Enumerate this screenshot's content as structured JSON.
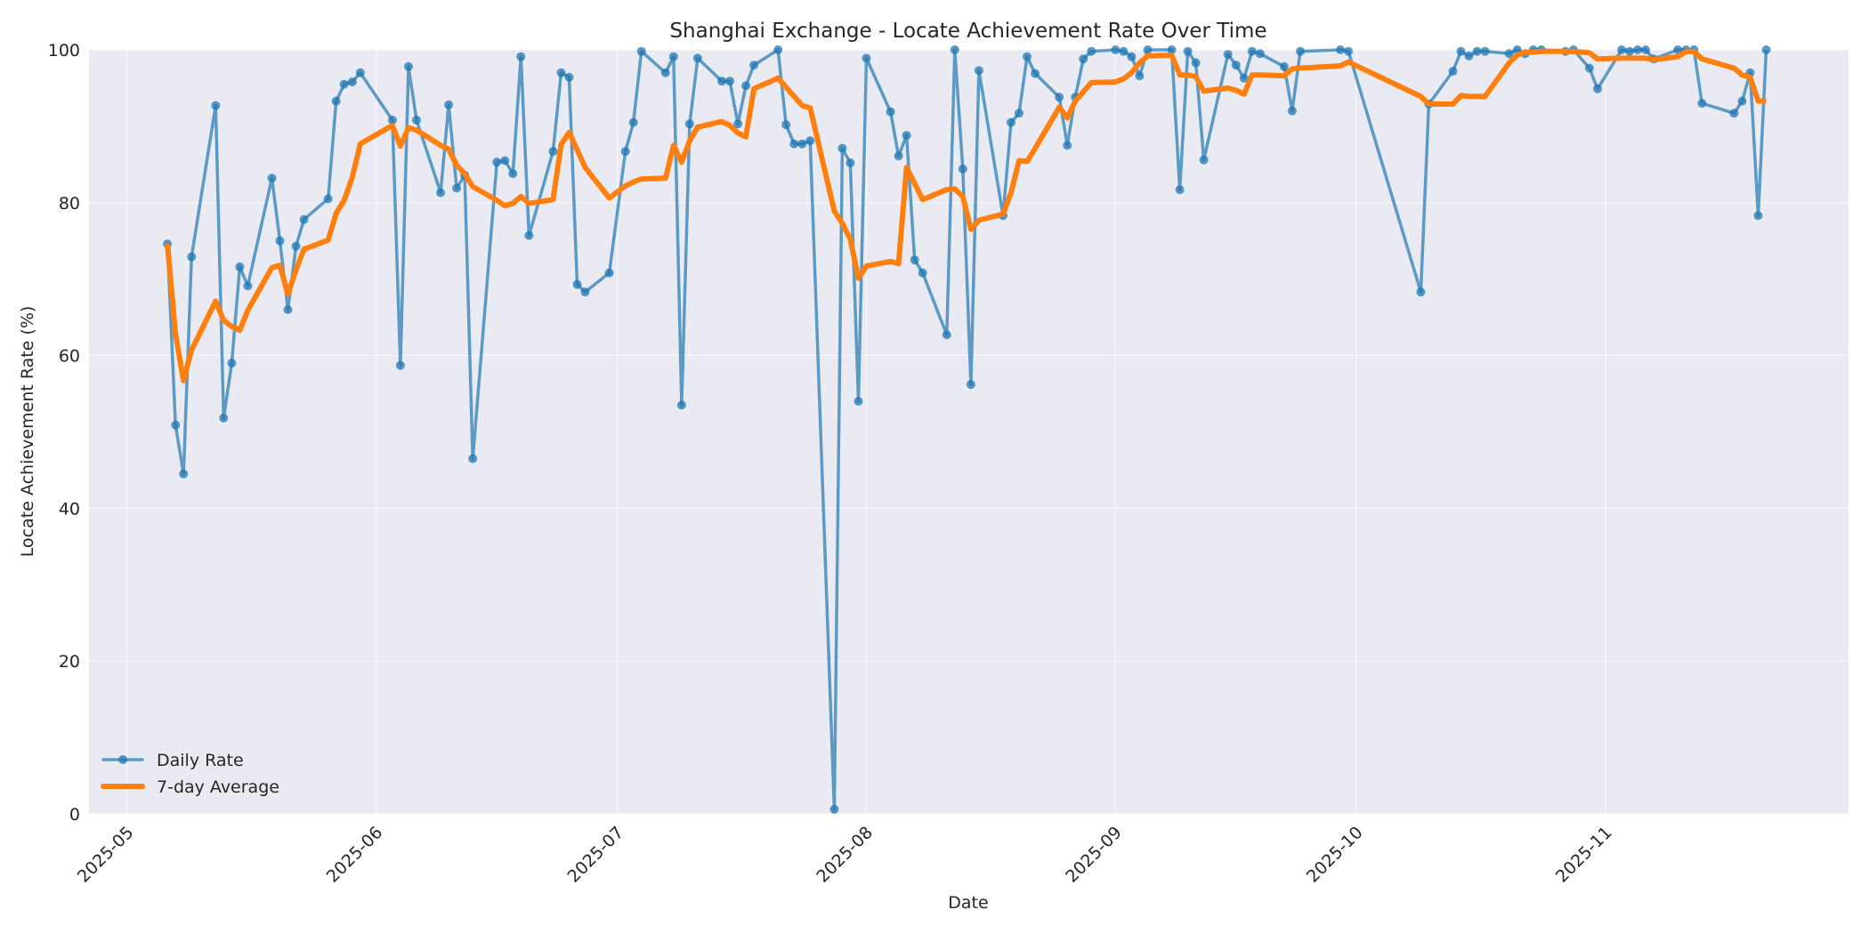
{
  "chart_data": {
    "type": "line",
    "title": "Shanghai Exchange - Locate Achievement Rate Over Time",
    "xlabel": "Date",
    "ylabel": "Locate Achievement Rate (%)",
    "ylim": [
      0,
      100
    ],
    "yticks": [
      0,
      20,
      40,
      60,
      80,
      100
    ],
    "xticks": [
      "2025-05",
      "2025-06",
      "2025-07",
      "2025-08",
      "2025-09",
      "2025-10",
      "2025-11"
    ],
    "grid": true,
    "legend_position": "lower left",
    "legend": [
      "Daily Rate",
      "7-day Average"
    ],
    "colors": {
      "daily": "#1f77b4",
      "average": "#ff7f0e",
      "plot_bg": "#eaeaf2",
      "grid": "#ffffff"
    },
    "x": [
      "2025-05-06",
      "2025-05-07",
      "2025-05-08",
      "2025-05-09",
      "2025-05-12",
      "2025-05-13",
      "2025-05-14",
      "2025-05-15",
      "2025-05-16",
      "2025-05-19",
      "2025-05-20",
      "2025-05-21",
      "2025-05-22",
      "2025-05-23",
      "2025-05-26",
      "2025-05-27",
      "2025-05-28",
      "2025-05-29",
      "2025-05-30",
      "2025-06-03",
      "2025-06-04",
      "2025-06-05",
      "2025-06-06",
      "2025-06-09",
      "2025-06-10",
      "2025-06-11",
      "2025-06-12",
      "2025-06-13",
      "2025-06-16",
      "2025-06-17",
      "2025-06-18",
      "2025-06-19",
      "2025-06-20",
      "2025-06-23",
      "2025-06-24",
      "2025-06-25",
      "2025-06-26",
      "2025-06-27",
      "2025-06-30",
      "2025-07-02",
      "2025-07-03",
      "2025-07-04",
      "2025-07-07",
      "2025-07-08",
      "2025-07-09",
      "2025-07-10",
      "2025-07-11",
      "2025-07-14",
      "2025-07-15",
      "2025-07-16",
      "2025-07-17",
      "2025-07-18",
      "2025-07-21",
      "2025-07-22",
      "2025-07-23",
      "2025-07-24",
      "2025-07-25",
      "2025-07-28",
      "2025-07-29",
      "2025-07-30",
      "2025-07-31",
      "2025-08-01",
      "2025-08-04",
      "2025-08-05",
      "2025-08-06",
      "2025-08-07",
      "2025-08-08",
      "2025-08-11",
      "2025-08-12",
      "2025-08-13",
      "2025-08-14",
      "2025-08-15",
      "2025-08-18",
      "2025-08-19",
      "2025-08-20",
      "2025-08-21",
      "2025-08-22",
      "2025-08-25",
      "2025-08-26",
      "2025-08-27",
      "2025-08-28",
      "2025-08-29",
      "2025-09-01",
      "2025-09-02",
      "2025-09-03",
      "2025-09-04",
      "2025-09-05",
      "2025-09-08",
      "2025-09-09",
      "2025-09-10",
      "2025-09-11",
      "2025-09-12",
      "2025-09-15",
      "2025-09-16",
      "2025-09-17",
      "2025-09-18",
      "2025-09-19",
      "2025-09-22",
      "2025-09-23",
      "2025-09-24",
      "2025-09-29",
      "2025-09-30",
      "2025-10-09",
      "2025-10-10",
      "2025-10-13",
      "2025-10-14",
      "2025-10-15",
      "2025-10-16",
      "2025-10-17",
      "2025-10-20",
      "2025-10-21",
      "2025-10-22",
      "2025-10-23",
      "2025-10-24",
      "2025-10-27",
      "2025-10-28",
      "2025-10-30",
      "2025-10-31",
      "2025-11-03",
      "2025-11-04",
      "2025-11-05",
      "2025-11-06",
      "2025-11-07",
      "2025-11-10",
      "2025-11-11",
      "2025-11-12",
      "2025-11-13",
      "2025-11-17",
      "2025-11-18",
      "2025-11-19",
      "2025-11-20",
      "2025-11-21"
    ],
    "series": [
      {
        "name": "Daily Rate",
        "marker": "o",
        "values": [
          74.6,
          50.9,
          44.5,
          72.9,
          92.7,
          51.8,
          59.0,
          71.6,
          69.1,
          83.2,
          75.0,
          66.0,
          74.3,
          77.8,
          80.5,
          93.3,
          95.5,
          95.8,
          97.0,
          90.8,
          58.7,
          97.8,
          90.8,
          81.3,
          92.8,
          81.9,
          83.6,
          46.5,
          85.3,
          85.5,
          83.8,
          99.1,
          75.7,
          86.7,
          97.0,
          96.4,
          69.3,
          68.3,
          70.8,
          86.7,
          90.5,
          99.8,
          97.0,
          99.1,
          53.5,
          90.3,
          98.9,
          95.9,
          95.9,
          90.3,
          95.3,
          98.0,
          100.0,
          90.2,
          87.7,
          87.7,
          88.1,
          0.6,
          87.1,
          85.2,
          54.0,
          98.9,
          91.9,
          86.1,
          88.8,
          72.5,
          70.8,
          62.7,
          100.0,
          84.4,
          56.2,
          97.3,
          78.3,
          90.5,
          91.7,
          99.1,
          96.9,
          93.8,
          87.5,
          93.8,
          98.8,
          99.8,
          100.0,
          99.8,
          99.1,
          96.6,
          100.0,
          100.0,
          81.7,
          99.8,
          98.3,
          85.6,
          99.4,
          98.0,
          96.3,
          99.8,
          99.5,
          97.8,
          92.0,
          99.8,
          100.0,
          99.8,
          68.3,
          92.9,
          97.2,
          99.8,
          99.2,
          99.8,
          99.8,
          99.5,
          100.0,
          99.5,
          100.0,
          100.0,
          99.8,
          100.0,
          97.6,
          94.9,
          100.0,
          99.8,
          100.0,
          100.0,
          98.8,
          100.0,
          100.0,
          100.0,
          93.0,
          91.7,
          93.3,
          97.0,
          78.3,
          100.0
        ]
      },
      {
        "name": "7-day Average",
        "marker": "none",
        "values": [
          74.6,
          62.8,
          56.7,
          60.7,
          67.1,
          64.6,
          63.8,
          63.3,
          65.9,
          71.5,
          71.8,
          68.0,
          71.2,
          73.9,
          75.1,
          78.6,
          80.3,
          83.3,
          87.7,
          90.1,
          87.4,
          89.8,
          89.5,
          87.5,
          87.0,
          84.9,
          83.8,
          82.1,
          80.3,
          79.6,
          79.9,
          80.8,
          79.9,
          80.4,
          87.6,
          89.2,
          86.9,
          84.6,
          80.6,
          82.2,
          82.7,
          83.1,
          83.2,
          87.5,
          85.3,
          88.1,
          89.9,
          90.6,
          90.1,
          89.1,
          88.6,
          94.9,
          96.3,
          95.1,
          93.9,
          92.7,
          92.4,
          78.9,
          77.3,
          75.2,
          70.1,
          71.7,
          72.3,
          72.0,
          84.6,
          82.5,
          80.4,
          81.7,
          81.8,
          80.8,
          76.5,
          77.7,
          78.5,
          81.3,
          85.5,
          85.4,
          87.1,
          92.5,
          91.1,
          93.3,
          94.5,
          95.7,
          95.8,
          96.2,
          97.0,
          98.3,
          99.2,
          99.3,
          96.7,
          96.7,
          96.5,
          94.6,
          95.0,
          94.7,
          94.2,
          96.7,
          96.7,
          96.6,
          97.5,
          97.6,
          97.9,
          98.4,
          93.9,
          92.9,
          92.9,
          94.0,
          93.9,
          93.9,
          93.9,
          98.3,
          99.3,
          99.7,
          99.7,
          99.8,
          99.8,
          99.8,
          99.6,
          98.8,
          98.9,
          98.9,
          98.9,
          98.9,
          98.7,
          99.1,
          99.8,
          99.8,
          98.8,
          97.6,
          96.7,
          96.4,
          93.3,
          93.3
        ]
      }
    ]
  },
  "labels": {
    "title": "Shanghai Exchange - Locate Achievement Rate Over Time",
    "xlabel": "Date",
    "ylabel": "Locate Achievement Rate (%)",
    "legend_daily": "Daily Rate",
    "legend_avg": "7-day Average"
  }
}
